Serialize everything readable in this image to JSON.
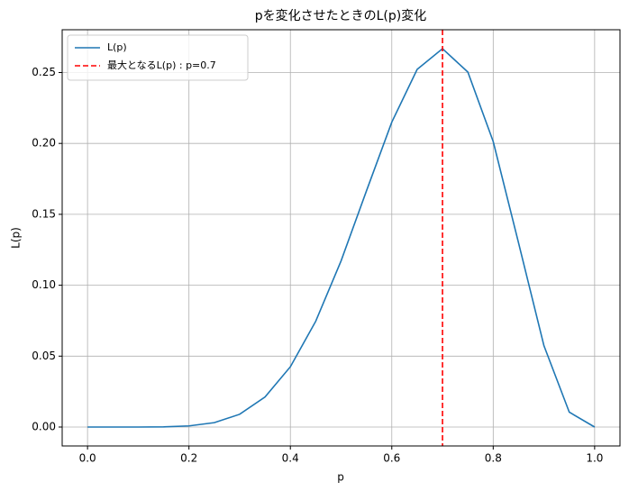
{
  "chart_data": {
    "type": "line",
    "title": "pを変化させたときのL(p)変化",
    "xlabel": "p",
    "ylabel": "L(p)",
    "x": [
      0,
      0.05,
      0.1,
      0.15,
      0.2,
      0.25,
      0.3,
      0.35,
      0.4,
      0.45,
      0.5,
      0.55,
      0.6,
      0.65,
      0.7,
      0.75,
      0.8,
      0.85,
      0.9,
      0.95,
      1.0
    ],
    "series": [
      {
        "name": "L(p)",
        "color": "#1f77b4",
        "values": [
          0,
          8e-08,
          8.7e-06,
          0.000126,
          0.00079,
          0.00309,
          0.009,
          0.0212,
          0.0425,
          0.0746,
          0.1172,
          0.1665,
          0.215,
          0.2522,
          0.2668,
          0.2503,
          0.2013,
          0.1298,
          0.0574,
          0.0105,
          0
        ]
      }
    ],
    "vline": {
      "x": 0.7,
      "name": "最大となるL(p) : p=0.7",
      "color": "#ff0000"
    },
    "xlim": [
      -0.05,
      1.05
    ],
    "xticks": [
      {
        "value": 0,
        "label": "0.0"
      },
      {
        "value": 0.2,
        "label": "0.2"
      },
      {
        "value": 0.4,
        "label": "0.4"
      },
      {
        "value": 0.6,
        "label": "0.6"
      },
      {
        "value": 0.8,
        "label": "0.8"
      },
      {
        "value": 1.0,
        "label": "1.0"
      }
    ],
    "ylim": [
      -0.01334,
      0.28017
    ],
    "yticks": [
      {
        "value": 0,
        "label": "0.00"
      },
      {
        "value": 0.05,
        "label": "0.05"
      },
      {
        "value": 0.1,
        "label": "0.10"
      },
      {
        "value": 0.15,
        "label": "0.15"
      },
      {
        "value": 0.2,
        "label": "0.20"
      },
      {
        "value": 0.25,
        "label": "0.25"
      }
    ],
    "grid": true,
    "legend": "upper left"
  }
}
